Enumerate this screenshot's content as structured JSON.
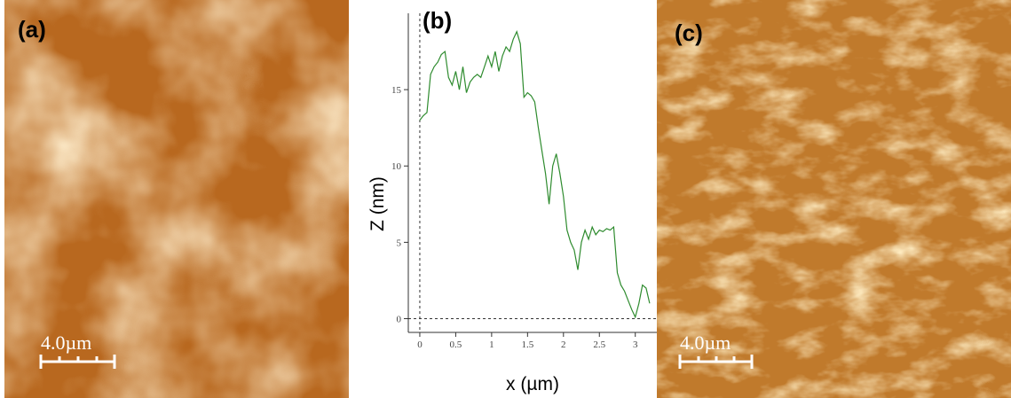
{
  "panels": [
    {
      "label": "(a)",
      "scale_bar": "4.0µm"
    },
    {
      "label": "(b)"
    },
    {
      "label": "(c)",
      "scale_bar": "4.0µm"
    }
  ],
  "chart_data": {
    "type": "line",
    "xlabel": "x (µm)",
    "ylabel": "Z (nm)",
    "color": "#2e8b2e",
    "x": [
      0,
      0.05,
      0.1,
      0.15,
      0.2,
      0.25,
      0.3,
      0.35,
      0.4,
      0.45,
      0.5,
      0.55,
      0.6,
      0.65,
      0.7,
      0.75,
      0.8,
      0.85,
      0.9,
      0.95,
      1.0,
      1.05,
      1.1,
      1.15,
      1.2,
      1.25,
      1.3,
      1.35,
      1.4,
      1.45,
      1.5,
      1.55,
      1.6,
      1.65,
      1.7,
      1.75,
      1.8,
      1.85,
      1.9,
      1.95,
      2.0,
      2.05,
      2.1,
      2.15,
      2.2,
      2.25,
      2.3,
      2.35,
      2.4,
      2.45,
      2.5,
      2.55,
      2.6,
      2.65,
      2.7,
      2.75,
      2.8,
      2.85,
      2.9,
      2.95,
      3.0,
      3.05,
      3.1,
      3.15,
      3.2
    ],
    "values": [
      13,
      13.3,
      13.5,
      16,
      16.5,
      16.8,
      17.3,
      17.5,
      15.8,
      15.3,
      16.2,
      15,
      16.5,
      14.8,
      15.5,
      15.8,
      16,
      15.8,
      16.5,
      17.2,
      16.5,
      17.5,
      16.2,
      17.2,
      17.8,
      17.5,
      18.3,
      18.8,
      18,
      14.5,
      14.8,
      14.6,
      14.2,
      12.5,
      11,
      9.5,
      7.5,
      10,
      10.8,
      9.5,
      8,
      5.8,
      5,
      4.5,
      3.2,
      5,
      5.8,
      5.2,
      6,
      5.5,
      5.8,
      5.7,
      5.9,
      5.8,
      6,
      3,
      2.2,
      1.8,
      1.2,
      0.6,
      0.1,
      1,
      2.2,
      2,
      1
    ],
    "xlim": [
      -0.16,
      3.3
    ],
    "ylim": [
      -0.9,
      20
    ],
    "xticks": [
      0,
      0.5,
      1,
      1.5,
      2,
      2.5,
      3
    ],
    "yticks": [
      0,
      5,
      10,
      15
    ]
  }
}
